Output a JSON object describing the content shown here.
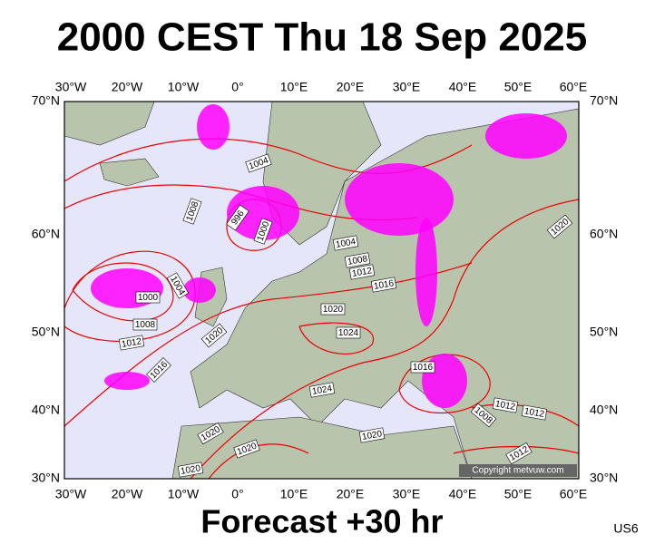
{
  "header": {
    "title": "2000 CEST Thu 18 Sep 2025"
  },
  "map": {
    "lon_labels": [
      "30°W",
      "20°W",
      "10°W",
      "0°",
      "10°E",
      "20°E",
      "30°E",
      "40°E",
      "50°E",
      "60°E"
    ],
    "lat_labels": [
      "70°N",
      "60°N",
      "50°N",
      "40°N",
      "30°N"
    ],
    "isobar_labels": [
      "1004",
      "1008",
      "996",
      "1000",
      "1004",
      "1008",
      "1012",
      "1016",
      "1020",
      "1000",
      "1004",
      "1008",
      "1012",
      "1020",
      "1024",
      "1020",
      "1016",
      "1016",
      "1024",
      "1012",
      "1012",
      "1008",
      "1020",
      "1020",
      "1020",
      "1012",
      "1020"
    ],
    "copyright": "Copyright metvuw.com"
  },
  "footer": {
    "forecast": "Forecast +30 hr",
    "code": "US6"
  }
}
